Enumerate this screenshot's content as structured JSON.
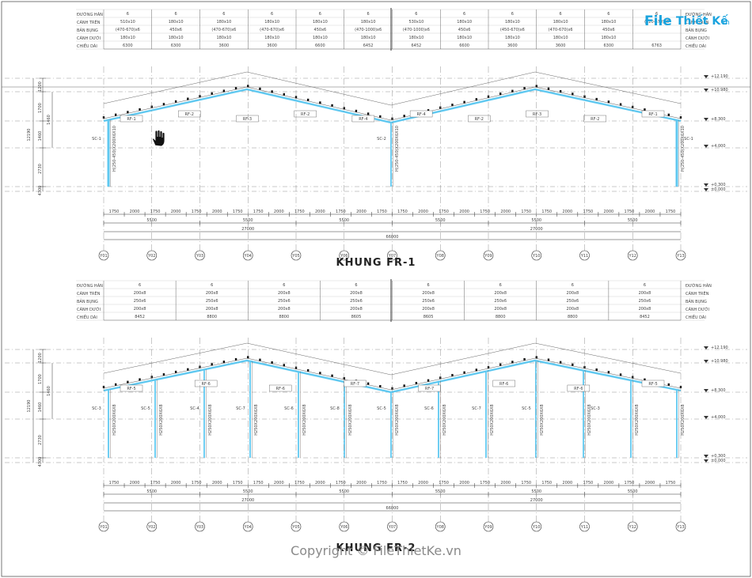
{
  "logo": {
    "icon_text": "File",
    "name_text": "Thiết Kế",
    "domain_text": ".vn"
  },
  "watermark": "Copyright © FileThietKe.vn",
  "frames": [
    {
      "title": "KHUNG FR-1",
      "table": {
        "rows_left": [
          "ĐƯỜNG HÀN",
          "CÁNH TRÊN",
          "BẢN BỤNG",
          "CÁNH DƯỚI",
          "CHIỀU DÀI"
        ],
        "rows_right": [
          "ĐƯỜNG HÀN",
          "CÁNH TRÊN",
          "BẢN BỤNG",
          "CÁNH DƯỚI",
          "CHIỀU DÀI"
        ],
        "cols": [
          [
            "6",
            "510x10",
            "(470-670)x6",
            "180x10",
            "6300"
          ],
          [
            "6",
            "180x10",
            "450x6",
            "180x10",
            "6300"
          ],
          [
            "6",
            "180x10",
            "(470-670)x6",
            "180x10",
            "3600"
          ],
          [
            "6",
            "180x10",
            "(470-670)x6",
            "180x10",
            "3600"
          ],
          [
            "6",
            "180x10",
            "450x6",
            "180x10",
            "6600"
          ],
          [
            "6",
            "180x10",
            "(470-1000)x6",
            "180x10",
            "6452"
          ],
          [
            "6",
            "530x10",
            "(470-1000)x6",
            "180x10",
            "6452"
          ],
          [
            "6",
            "180x10",
            "450x6",
            "180x10",
            "6600"
          ],
          [
            "6",
            "180x10",
            "(450-670)x6",
            "180x10",
            "3600"
          ],
          [
            "6",
            "180x10",
            "(470-670)x6",
            "180x10",
            "3600"
          ],
          [
            "6",
            "180x10",
            "450x6",
            "180x10",
            "6300"
          ],
          [
            "6",
            "(120-670)x6",
            "",
            "",
            "6763"
          ]
        ]
      },
      "levels": [
        "+12.190",
        "+10.980",
        "+8.300",
        "+4.000",
        "+0.300",
        "±0.000"
      ],
      "member_tags": [
        "RF-1",
        "RF-2",
        "RF-3",
        "RF-2",
        "RF-4",
        "RF-4",
        "RF-2",
        "RF-3",
        "RF-2",
        "RF-1"
      ],
      "column_tags": [
        "SC-1",
        "SC-2",
        "SC-1"
      ],
      "column_section_text": "H(250-450)X200X6X10",
      "left_dims": [
        "12190",
        "1200",
        "1700",
        "1460",
        "2730",
        "4300",
        "300"
      ],
      "span_dims": [
        "1750",
        "2000",
        "1750",
        "2000",
        "1750",
        "2000",
        "1750",
        "1750",
        "2000",
        "1750",
        "2000",
        "1750",
        "2000",
        "1750"
      ],
      "segment_dims": [
        "5500",
        "5500",
        "5500",
        "5500",
        "5500",
        "5500"
      ],
      "half_dims": [
        "27000",
        "27000"
      ],
      "total_dim": "66000",
      "axes": [
        "Y01",
        "Y02",
        "Y03",
        "Y04",
        "Y05",
        "Y06",
        "Y07",
        "Y08",
        "Y09",
        "Y10",
        "Y11",
        "Y12",
        "Y13"
      ]
    },
    {
      "title": "KHUNG FR-2",
      "table": {
        "rows_left": [
          "ĐƯỜNG HÀN",
          "CÁNH TRÊN",
          "BẢN BỤNG",
          "CÁNH DƯỚI",
          "CHIỀU DÀI"
        ],
        "rows_right": [
          "ĐƯỜNG HÀN",
          "CÁNH TRÊN",
          "BẢN BỤNG",
          "CÁNH DƯỚI",
          "CHIỀU DÀI"
        ],
        "cols": [
          [
            "6",
            "200x8",
            "250x6",
            "200x8",
            "8452"
          ],
          [
            "6",
            "200x8",
            "250x6",
            "200x8",
            "8800"
          ],
          [
            "6",
            "200x8",
            "250x6",
            "200x8",
            "8800"
          ],
          [
            "6",
            "200x8",
            "250x6",
            "200x8",
            "8605"
          ],
          [
            "6",
            "200x8",
            "250x6",
            "200x8",
            "8605"
          ],
          [
            "6",
            "200x8",
            "250x6",
            "200x8",
            "8800"
          ],
          [
            "6",
            "200x8",
            "250x6",
            "200x8",
            "8800"
          ],
          [
            "6",
            "200x8",
            "250x6",
            "200x8",
            "8452"
          ]
        ]
      },
      "levels": [
        "+12.190",
        "+10.980",
        "+8.300",
        "+4.000",
        "+0.300",
        "±0.000"
      ],
      "member_tags": [
        "RF-5",
        "RF-6",
        "RF-6",
        "RF-7",
        "RF-7",
        "RF-6",
        "RF-6",
        "RF-5"
      ],
      "column_tags": [
        "SC-3",
        "SC-5",
        "SC-4",
        "SC-7",
        "SC-6",
        "SC-8",
        "SC-5",
        "SC-6",
        "SC-7",
        "SC-5",
        "SC-3"
      ],
      "column_section_text": "H250X200X6X8",
      "left_dims": [
        "12190",
        "1200",
        "1700",
        "1460",
        "2730",
        "4300",
        "300"
      ],
      "span_dims": [
        "1750",
        "2000",
        "1750",
        "2000",
        "1750",
        "2000",
        "1750",
        "1750",
        "2000",
        "1750",
        "2000",
        "1750",
        "2000",
        "1750"
      ],
      "segment_dims": [
        "5500",
        "5500",
        "5500",
        "5500",
        "5500",
        "5500"
      ],
      "half_dims": [
        "27000",
        "27000"
      ],
      "total_dim": "66000",
      "axes": [
        "Y01",
        "Y02",
        "Y03",
        "Y04",
        "Y05",
        "Y06",
        "Y07",
        "Y08",
        "Y09",
        "Y10",
        "Y11",
        "Y12",
        "Y13"
      ]
    }
  ],
  "colors": {
    "member": "#5fc8f0",
    "line": "#333333",
    "dash": "#777777",
    "background": "#ffffff"
  },
  "icons": [
    "hand-cursor-icon"
  ]
}
